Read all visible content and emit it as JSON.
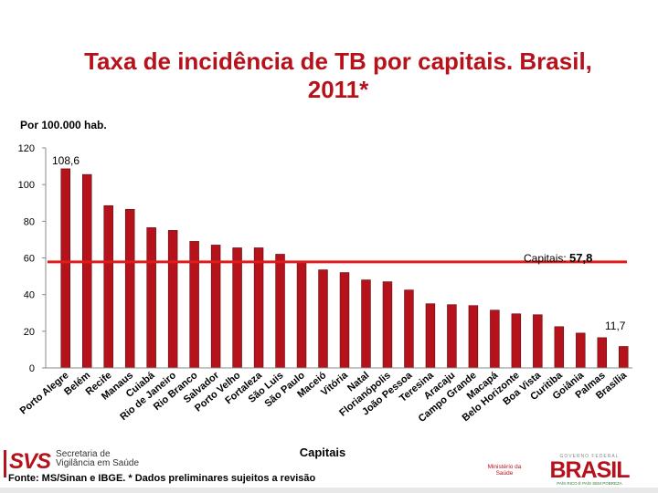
{
  "title": {
    "line1": "Taxa de incidência de TB por capitais. Brasil,",
    "line2": "2011*"
  },
  "chart_data": {
    "type": "bar",
    "title": "Taxa de incidência de TB por capitais. Brasil, 2011*",
    "ylabel": "Por 100.000 hab.",
    "xlabel": "Capitais",
    "ylim": [
      0,
      120
    ],
    "yticks": [
      "0",
      "20",
      "40",
      "60",
      "80",
      "100",
      "120"
    ],
    "categories": [
      "Porto Alegre",
      "Belém",
      "Recife",
      "Manaus",
      "Cuiabá",
      "Rio de Janeiro",
      "Rio Branco",
      "Salvador",
      "Porto Velho",
      "Fortaleza",
      "São Luis",
      "São Paulo",
      "Maceió",
      "Vitória",
      "Natal",
      "Florianópolis",
      "João Pessoa",
      "Teresina",
      "Aracaju",
      "Campo Grande",
      "Macapá",
      "Belo Horizonte",
      "Boa Vista",
      "Curitiba",
      "Goiânia",
      "Palmas",
      "Brasília"
    ],
    "values": [
      108.6,
      105.5,
      88.5,
      86.5,
      76.5,
      75,
      69,
      67,
      65.5,
      65.5,
      62,
      57.5,
      53.5,
      52,
      48,
      47,
      42.5,
      35,
      34.5,
      34,
      31.5,
      29.5,
      29,
      22.5,
      19,
      16.5,
      11.7
    ],
    "bar_color": "#b5121b",
    "reference_line": {
      "label": "Capitais:",
      "value": 57.8,
      "value_text": "57,8",
      "color": "#e01b1b"
    },
    "annotations": {
      "first_bar": "108,6",
      "last_bar": "11,7"
    }
  },
  "footer": {
    "source": "Fonte: MS/Sinan e IBGE. * Dados preliminares sujeitos a revisão",
    "svs_logo": {
      "mark": "SVS",
      "lines": [
        "Secretaria de",
        "Vigilância em Saúde"
      ]
    },
    "ministerio": {
      "lines": [
        "Ministério da",
        "Saúde"
      ]
    },
    "brasil": {
      "top": "GOVERNO FEDERAL",
      "word": "BRASIL",
      "sub": "PAÍS RICO É PAÍS SEM POBREZA"
    }
  }
}
